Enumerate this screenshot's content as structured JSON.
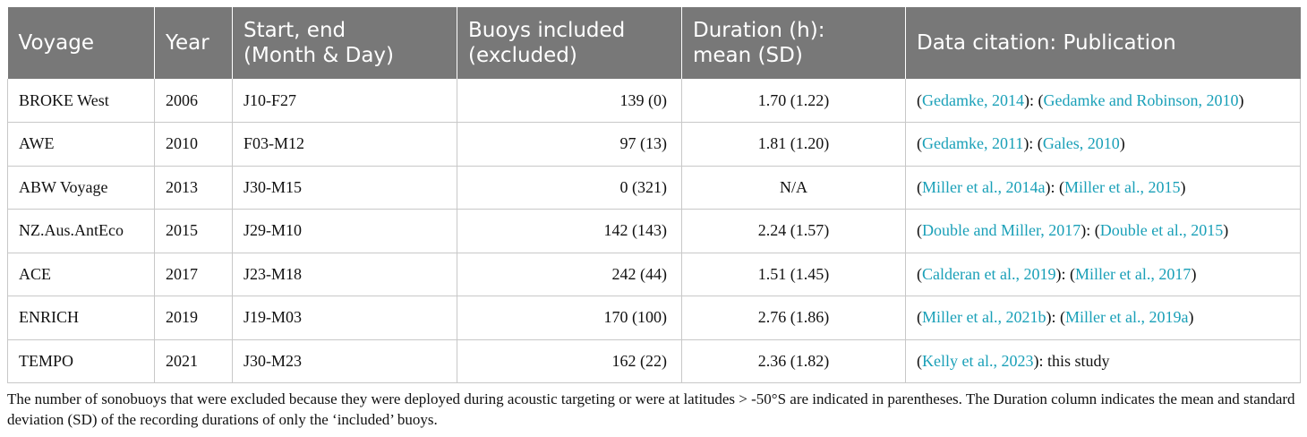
{
  "headers": {
    "voyage": "Voyage",
    "year": "Year",
    "startend_line1": "Start, end",
    "startend_line2": "(Month & Day)",
    "buoys_line1": "Buoys included",
    "buoys_line2": "(excluded)",
    "duration_line1": "Duration (h):",
    "duration_line2": "mean (SD)",
    "citation": "Data citation: Publication"
  },
  "rows": [
    {
      "voyage": "BROKE West",
      "year": "2006",
      "startend": "J10-F27",
      "buoys": "139 (0)",
      "duration": "1.70 (1.22)",
      "cite_a": "Gedamke, 2014",
      "cite_b": "Gedamke and Robinson, 2010"
    },
    {
      "voyage": "AWE",
      "year": "2010",
      "startend": "F03-M12",
      "buoys": "97 (13)",
      "duration": "1.81 (1.20)",
      "cite_a": "Gedamke, 2011",
      "cite_b": "Gales, 2010"
    },
    {
      "voyage": "ABW Voyage",
      "year": "2013",
      "startend": "J30-M15",
      "buoys": "0 (321)",
      "duration": "N/A",
      "cite_a": "Miller et al., 2014a",
      "cite_b": "Miller et al., 2015"
    },
    {
      "voyage": "NZ.Aus.AntEco",
      "year": "2015",
      "startend": "J29-M10",
      "buoys": "142 (143)",
      "duration": "2.24 (1.57)",
      "cite_a": "Double and Miller, 2017",
      "cite_b": "Double et al., 2015"
    },
    {
      "voyage": "ACE",
      "year": "2017",
      "startend": "J23-M18",
      "buoys": "242 (44)",
      "duration": "1.51 (1.45)",
      "cite_a": "Calderan et al., 2019",
      "cite_b": "Miller et al., 2017"
    },
    {
      "voyage": "ENRICH",
      "year": "2019",
      "startend": "J19-M03",
      "buoys": "170 (100)",
      "duration": "2.76 (1.86)",
      "cite_a": "Miller et al., 2021b",
      "cite_b": "Miller et al., 2019a"
    },
    {
      "voyage": "TEMPO",
      "year": "2021",
      "startend": "J30-M23",
      "buoys": "162 (22)",
      "duration": "2.36 (1.82)",
      "cite_a": "Kelly et al., 2023",
      "cite_plain": "this study"
    }
  ],
  "footnote": "The number of sonobuoys that were excluded because they were deployed during acoustic targeting or were at latitudes > -50°S are indicated in parentheses. The Duration column indicates the mean and standard deviation (SD) of the recording durations of only the ‘included’ buoys.",
  "colors": {
    "header_bg": "#787878",
    "citation_link": "#1aa0b8"
  }
}
